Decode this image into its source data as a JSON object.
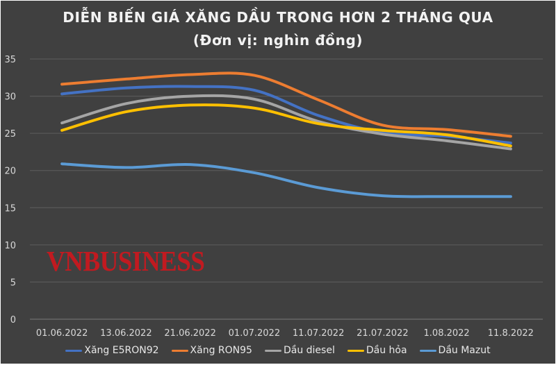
{
  "chart_data": {
    "type": "line",
    "title": "DIỄN BIẾN GIÁ XĂNG DẦU TRONG HƠN 2 THÁNG QUA",
    "subtitle": "(Đơn vị: nghìn đồng)",
    "categories": [
      "01.06.2022",
      "13.06.2022",
      "21.06.2022",
      "01.07.2022",
      "11.07.2022",
      "21.07.2022",
      "1.08.2022",
      "11.8.2022"
    ],
    "ylim": [
      0,
      35
    ],
    "yticks": [
      0,
      5,
      10,
      15,
      20,
      25,
      30,
      35
    ],
    "grid": true,
    "legend_position": "bottom",
    "series": [
      {
        "name": "Xăng E5RON92",
        "color": "#4472c4",
        "values": [
          30.3,
          31.1,
          31.3,
          30.8,
          27.4,
          25.1,
          24.6,
          23.7
        ]
      },
      {
        "name": "Xăng RON95",
        "color": "#ed7d31",
        "values": [
          31.6,
          32.3,
          32.9,
          32.8,
          29.5,
          26.1,
          25.5,
          24.6
        ]
      },
      {
        "name": "Dầu diesel",
        "color": "#a5a5a5",
        "values": [
          26.4,
          29.0,
          30.0,
          29.6,
          26.6,
          24.9,
          24.0,
          22.9
        ]
      },
      {
        "name": "Dầu hỏa",
        "color": "#ffc000",
        "values": [
          25.4,
          27.9,
          28.8,
          28.4,
          26.3,
          25.4,
          24.8,
          23.3
        ]
      },
      {
        "name": "Dầu Mazut",
        "color": "#5b9bd5",
        "values": [
          20.9,
          20.4,
          20.8,
          19.7,
          17.7,
          16.6,
          16.5,
          16.5
        ]
      }
    ]
  },
  "watermark": "VNBUSINESS"
}
